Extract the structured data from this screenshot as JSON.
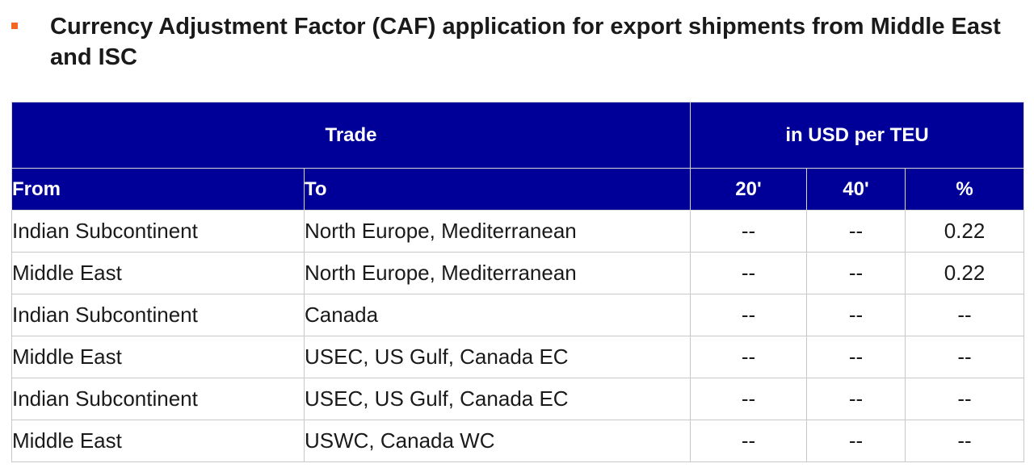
{
  "header": {
    "title": "Currency Adjustment Factor (CAF) application for export shipments from Middle East and ISC"
  },
  "table": {
    "group_headers": {
      "trade": "Trade",
      "unit": "in USD per TEU"
    },
    "columns": {
      "from": "From",
      "to": "To",
      "twenty": "20'",
      "forty": "40'",
      "percent": "%"
    },
    "rows": [
      {
        "from": "Indian Subcontinent",
        "to": "North Europe, Mediterranean",
        "twenty": "--",
        "forty": "--",
        "percent": "0.22"
      },
      {
        "from": "Middle East",
        "to": "North Europe, Mediterranean",
        "twenty": "--",
        "forty": "--",
        "percent": "0.22"
      },
      {
        "from": "Indian Subcontinent",
        "to": "Canada",
        "twenty": "--",
        "forty": "--",
        "percent": "--"
      },
      {
        "from": "Middle East",
        "to": "USEC, US Gulf, Canada EC",
        "twenty": "--",
        "forty": "--",
        "percent": "--"
      },
      {
        "from": "Indian Subcontinent",
        "to": "USEC, US Gulf, Canada EC",
        "twenty": "--",
        "forty": "--",
        "percent": "--"
      },
      {
        "from": "Middle East",
        "to": "USWC, Canada WC",
        "twenty": "--",
        "forty": "--",
        "percent": "--"
      }
    ]
  },
  "colors": {
    "header_bg": "#000099",
    "bullet": "#f26722",
    "border": "#c8c8c8"
  }
}
